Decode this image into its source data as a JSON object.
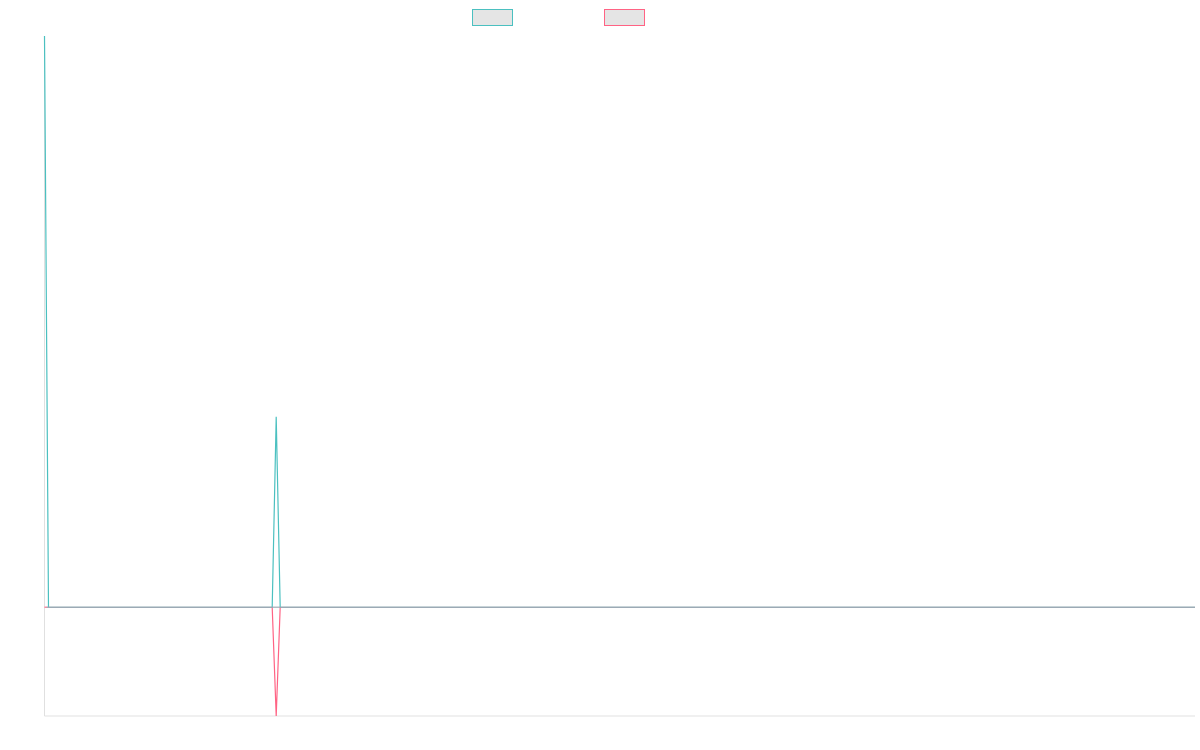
{
  "colors": {
    "series_a": "#4bc0c0",
    "series_b": "#ff6384",
    "swatch_fill": "#e5e5e5",
    "axis": "#e0e0e0",
    "zero_line": "#9aa5b1"
  },
  "chart_data": {
    "type": "line",
    "title": "",
    "xlabel": "",
    "ylabel": "",
    "legend_placement": "top-center",
    "grid": false,
    "x": [
      0,
      1,
      2,
      3,
      4,
      5,
      6,
      7,
      8,
      9,
      10,
      11,
      12,
      13,
      14,
      15,
      16,
      17,
      18,
      19,
      20,
      21,
      22,
      23,
      24,
      25,
      26,
      27,
      28,
      29,
      30,
      31,
      32,
      33,
      34,
      35,
      36,
      37,
      38,
      39,
      40,
      41,
      42,
      43,
      44,
      45,
      46,
      47,
      48,
      49,
      50,
      51,
      52,
      53,
      54,
      55,
      56,
      57,
      58,
      59,
      60,
      61,
      62,
      63,
      64,
      65,
      66,
      67,
      68,
      69,
      70,
      71,
      72,
      73,
      74,
      75,
      76,
      77,
      78,
      79,
      80,
      81,
      82,
      83,
      84,
      85,
      86,
      87,
      88,
      89,
      90,
      91,
      92,
      93,
      94,
      95,
      96,
      97,
      98,
      99,
      100,
      101,
      102,
      103,
      104,
      105,
      106,
      107,
      108,
      109,
      110,
      111,
      112,
      113,
      114,
      115,
      116,
      117,
      118,
      119,
      120,
      121,
      122,
      123,
      124,
      125,
      126,
      127,
      128,
      129,
      130,
      131,
      132,
      133,
      134,
      135,
      136,
      137,
      138,
      139,
      140,
      141,
      142,
      143,
      144,
      145,
      146,
      147,
      148,
      149,
      150,
      151,
      152,
      153,
      154,
      155,
      156,
      157,
      158,
      159,
      160,
      161,
      162,
      163,
      164,
      165,
      166,
      167,
      168,
      169,
      170,
      171,
      172,
      173,
      174,
      175,
      176,
      177,
      178,
      179,
      180,
      181,
      182,
      183,
      184,
      185,
      186,
      187,
      188,
      189,
      190,
      191,
      192,
      193,
      194,
      195,
      196,
      197,
      198,
      199,
      200,
      201,
      202,
      203,
      204,
      205,
      206,
      207,
      208,
      209,
      210,
      211,
      212,
      213,
      214,
      215,
      216,
      217,
      218,
      219,
      220,
      221,
      222,
      223,
      224,
      225,
      226,
      227,
      228,
      229,
      230,
      231,
      232,
      233,
      234,
      235,
      236,
      237,
      238,
      239,
      240,
      241,
      242,
      243,
      244,
      245,
      246,
      247,
      248,
      249,
      250,
      251,
      252,
      253,
      254,
      255,
      256,
      257,
      258,
      259,
      260,
      261,
      262,
      263,
      264,
      265,
      266,
      267,
      268,
      269,
      270,
      271,
      272,
      273,
      274,
      275,
      276,
      277,
      278,
      279,
      280,
      281,
      282,
      283,
      284,
      285,
      286,
      287,
      288
    ],
    "xlim": [
      0,
      288
    ],
    "ylim": [
      -1,
      5.25
    ],
    "series": [
      {
        "color_key": "series_a",
        "points": [
          [
            0,
            5.25
          ],
          [
            1,
            0
          ],
          [
            57,
            0
          ],
          [
            58,
            1.75
          ],
          [
            59,
            0
          ],
          [
            288,
            0
          ]
        ]
      },
      {
        "color_key": "series_b",
        "points": [
          [
            0,
            0
          ],
          [
            57,
            0
          ],
          [
            58,
            -1
          ],
          [
            59,
            0
          ],
          [
            288,
            0
          ]
        ]
      }
    ]
  }
}
